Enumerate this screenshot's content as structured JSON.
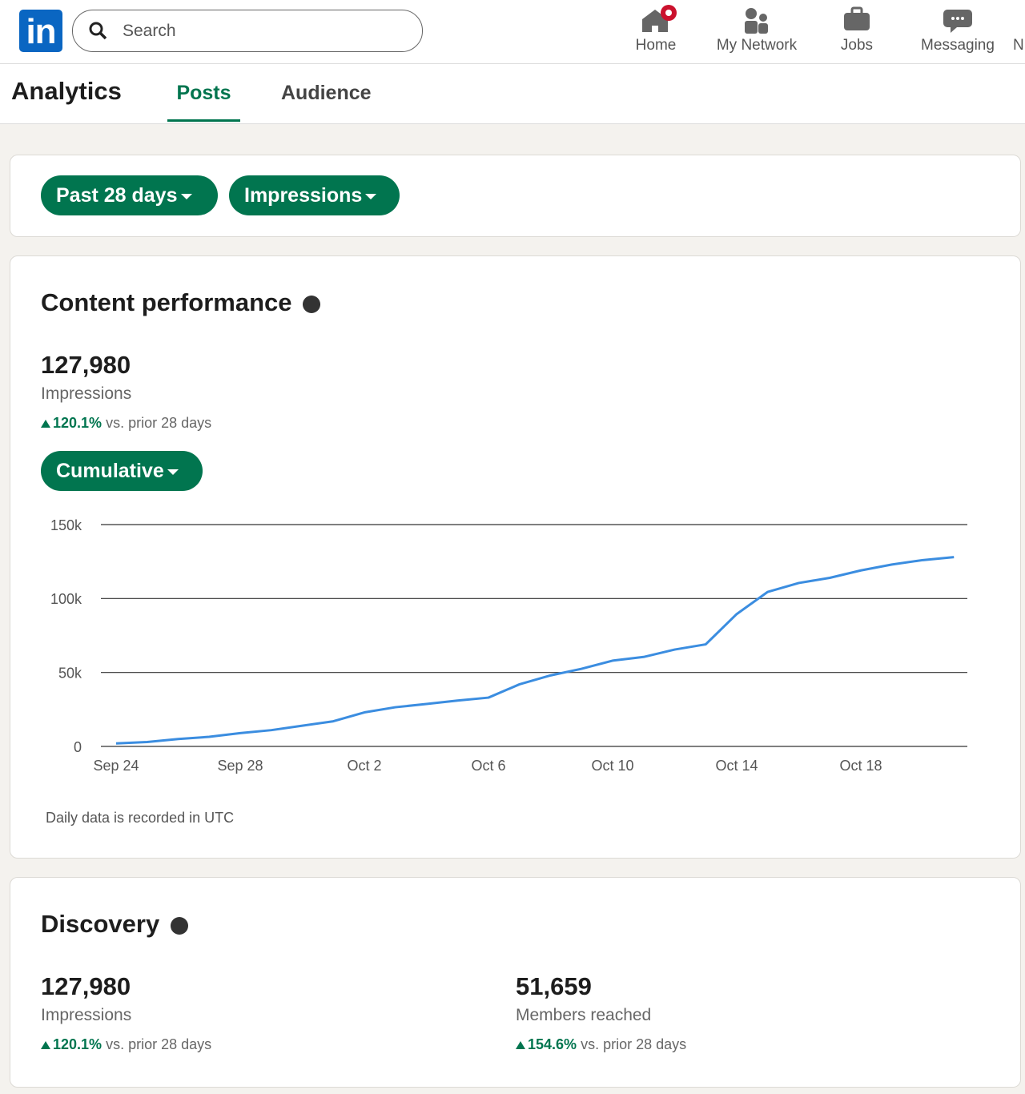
{
  "nav": {
    "logo": "in",
    "search": "Search",
    "items": [
      "Home",
      "My Network",
      "Jobs",
      "Messaging",
      "N"
    ]
  },
  "header": {
    "title": "Analytics",
    "tabs": [
      "Posts",
      "Audience"
    ]
  },
  "filters": [
    "Past 28 days",
    "Impressions"
  ],
  "content": {
    "title": "Content performance",
    "value": "127,980",
    "label": "Impressions",
    "change": "120.1%",
    "comparison": "vs. prior 28 days",
    "toggle": "Cumulative",
    "note": "Daily data is recorded in UTC"
  },
  "chart_data": {
    "type": "line",
    "color": "#3b8de0",
    "grid": true,
    "categories": [
      "Sep 24",
      null,
      null,
      null,
      "Sep 28",
      null,
      null,
      null,
      "Oct 2",
      null,
      null,
      null,
      "Oct 6",
      null,
      null,
      null,
      "Oct 10",
      null,
      null,
      null,
      "Oct 14",
      null,
      null,
      null,
      "Oct 18",
      null,
      null,
      null
    ],
    "values": [
      2000,
      3000,
      5000,
      6500,
      9000,
      11000,
      14000,
      17000,
      23000,
      26500,
      28700,
      31000,
      33000,
      42000,
      48000,
      52500,
      58000,
      60500,
      65500,
      69000,
      89500,
      104500,
      110500,
      114000,
      119000,
      123000,
      126000,
      128000
    ],
    "ylim": [
      0,
      150000
    ],
    "yticks": [
      0,
      {
        "value": 50000,
        "label": "50k"
      },
      {
        "value": 100000,
        "label": "100k"
      },
      {
        "value": 150000,
        "label": "150k"
      }
    ]
  },
  "discovery": {
    "title": "Discovery",
    "metrics": [
      {
        "value": "127,980",
        "label": "Impressions",
        "change": "120.1%",
        "comparison": "vs. prior 28 days"
      },
      {
        "value": "51,659",
        "label": "Members reached",
        "change": "154.6%",
        "comparison": "vs. prior 28 days"
      }
    ]
  }
}
